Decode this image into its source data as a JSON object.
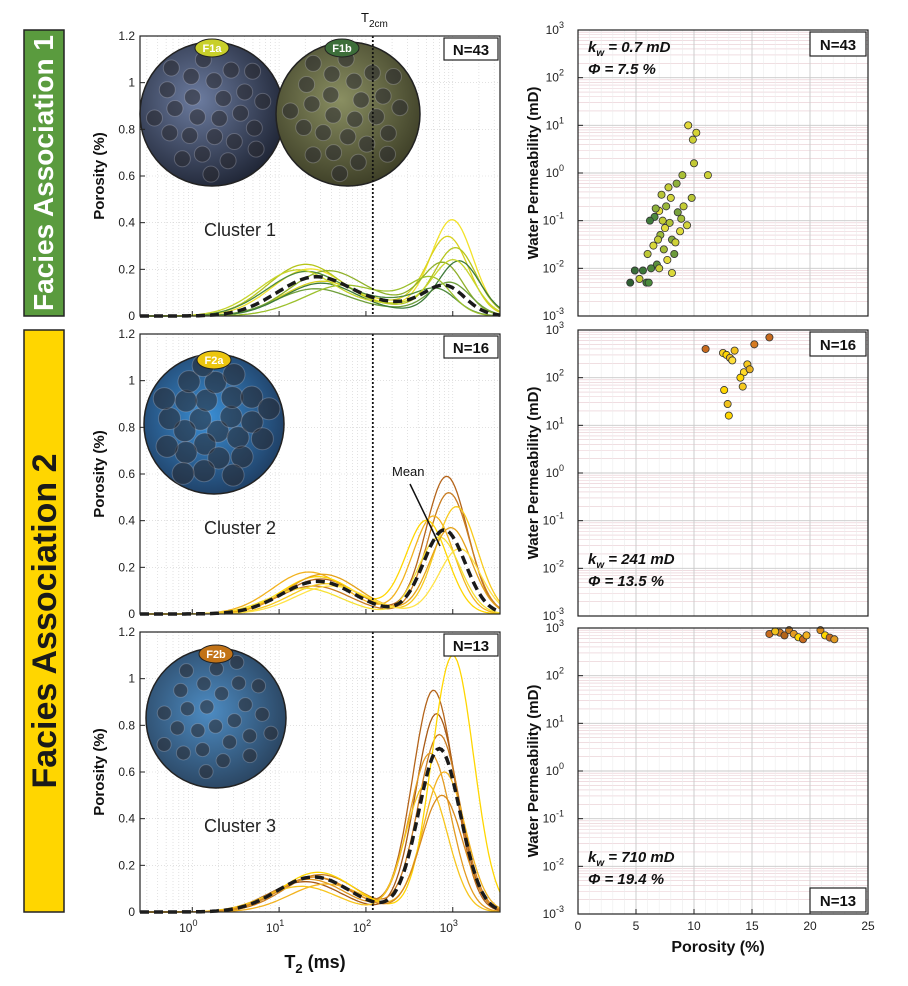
{
  "colors": {
    "fa1": "#5a9b3e",
    "fa2": "#ffd600",
    "mean": "#1a1a1a",
    "grid": "#d9d9d9",
    "gridPink": "#e8c9cf",
    "thin_sections": [
      "#3d4a6b",
      "#5c6a3a",
      "#2d6fb0",
      "#2a7cc0",
      "#3f86c6"
    ]
  },
  "facies": [
    {
      "label": "Facies Association 1",
      "color": "#5a9b3e",
      "text_color": "#ffffff"
    },
    {
      "label": "Facies Association 2",
      "color": "#ffd600",
      "text_color": "#1a1a1a"
    }
  ],
  "t2cm": {
    "label_main": "T",
    "label_sub": "2cm",
    "value": 120
  },
  "chart_data": [
    {
      "type": "line",
      "panel": "t2-cluster-1",
      "title": "Cluster 1",
      "n_label": "N=43",
      "xlabel_main": "T",
      "xlabel_sub": "2",
      "xlabel_unit": " (ms)",
      "ylabel": "Porosity (%)",
      "xscale": "log",
      "xlim": [
        0.25,
        3500
      ],
      "ylim": [
        0,
        1.2
      ],
      "yticks": [
        "0",
        "0.2",
        "0.4",
        "0.6",
        "0.8",
        "1",
        "1.2"
      ],
      "xticks": [
        {
          "base": "10",
          "exp": "0",
          "value": 1
        },
        {
          "base": "10",
          "exp": "1",
          "value": 10
        },
        {
          "base": "10",
          "exp": "2",
          "value": 100
        },
        {
          "base": "10",
          "exp": "3",
          "value": 1000
        }
      ],
      "inset_labels": [
        {
          "text": "F1a",
          "color": "#c8cf2a"
        },
        {
          "text": "F1b",
          "color": "#3d6e3a"
        }
      ],
      "peaks": {
        "p1_x": 22,
        "p1_y": 0.14,
        "mid_x": 90,
        "mid_y": 0.06,
        "p2_x": 850,
        "p2_y": 0.1
      },
      "series": [
        {
          "name": "mean",
          "color": "#1a1a1a",
          "p1x": 22,
          "p1h": 0.14,
          "p2x": 850,
          "p2h": 0.09,
          "base": 0.05,
          "dashed": true
        },
        {
          "name": "s1",
          "color": "#f2e22a",
          "p1x": 20,
          "p1h": 0.18,
          "p2x": 1000,
          "p2h": 0.38,
          "base": 0.04
        },
        {
          "name": "s2",
          "color": "#d9d21e",
          "p1x": 25,
          "p1h": 0.12,
          "p2x": 900,
          "p2h": 0.3,
          "base": 0.05
        },
        {
          "name": "s3",
          "color": "#b5c41b",
          "p1x": 18,
          "p1h": 0.2,
          "p2x": 1100,
          "p2h": 0.26,
          "base": 0.04
        },
        {
          "name": "s4",
          "color": "#8fb02a",
          "p1x": 30,
          "p1h": 0.16,
          "p2x": 800,
          "p2h": 0.18,
          "base": 0.06
        },
        {
          "name": "s5",
          "color": "#6e9f3a",
          "p1x": 22,
          "p1h": 0.1,
          "p2x": 950,
          "p2h": 0.12,
          "base": 0.03
        },
        {
          "name": "s6",
          "color": "#4f8a3c",
          "p1x": 16,
          "p1h": 0.15,
          "p2x": 700,
          "p2h": 0.06,
          "base": 0.07
        },
        {
          "name": "s7",
          "color": "#3e7a38",
          "p1x": 28,
          "p1h": 0.13,
          "p2x": 1200,
          "p2h": 0.22,
          "base": 0.02
        },
        {
          "name": "s8",
          "color": "#9cc02c",
          "p1x": 35,
          "p1h": 0.08,
          "p2x": 600,
          "p2h": 0.1,
          "base": 0.08
        },
        {
          "name": "s9",
          "color": "#c7d52b",
          "p1x": 14,
          "p1h": 0.17,
          "p2x": 1050,
          "p2h": 0.2,
          "base": 0.05
        }
      ]
    },
    {
      "type": "line",
      "panel": "t2-cluster-2",
      "title": "Cluster 2",
      "n_label": "N=16",
      "ylabel": "Porosity (%)",
      "xscale": "log",
      "xlim": [
        0.25,
        3500
      ],
      "ylim": [
        0,
        1.2
      ],
      "yticks": [
        "0",
        "0.2",
        "0.4",
        "0.6",
        "0.8",
        "1",
        "1.2"
      ],
      "inset_labels": [
        {
          "text": "F2a",
          "color": "#ecc60f"
        }
      ],
      "mean_label": "Mean",
      "series": [
        {
          "name": "mean",
          "color": "#1a1a1a",
          "p1x": 28,
          "p1h": 0.14,
          "p2x": 800,
          "p2h": 0.36,
          "base": 0.0,
          "dashed": true
        },
        {
          "name": "s1",
          "color": "#b4641a",
          "p1x": 30,
          "p1h": 0.15,
          "p2x": 850,
          "p2h": 0.59,
          "base": 0.0
        },
        {
          "name": "s2",
          "color": "#c97c20",
          "p1x": 25,
          "p1h": 0.12,
          "p2x": 900,
          "p2h": 0.52,
          "base": 0.0
        },
        {
          "name": "s3",
          "color": "#f2b21e",
          "p1x": 22,
          "p1h": 0.18,
          "p2x": 600,
          "p2h": 0.42,
          "base": 0.0
        },
        {
          "name": "s4",
          "color": "#f8cb1d",
          "p1x": 35,
          "p1h": 0.13,
          "p2x": 1100,
          "p2h": 0.46,
          "base": 0.0
        },
        {
          "name": "s5",
          "color": "#ffd600",
          "p1x": 28,
          "p1h": 0.16,
          "p2x": 500,
          "p2h": 0.4,
          "base": 0.0
        },
        {
          "name": "s6",
          "color": "#f5e033",
          "p1x": 20,
          "p1h": 0.11,
          "p2x": 700,
          "p2h": 0.33,
          "base": 0.0
        },
        {
          "name": "s7",
          "color": "#e5a31a",
          "p1x": 32,
          "p1h": 0.17,
          "p2x": 950,
          "p2h": 0.37,
          "base": 0.0
        },
        {
          "name": "s8",
          "color": "#ffe347",
          "p1x": 40,
          "p1h": 0.12,
          "p2x": 1200,
          "p2h": 0.28,
          "base": 0.0
        }
      ]
    },
    {
      "type": "line",
      "panel": "t2-cluster-3",
      "title": "Cluster 3",
      "n_label": "N=13",
      "ylabel": "Porosity (%)",
      "xscale": "log",
      "xlim": [
        0.25,
        3500
      ],
      "ylim": [
        0,
        1.2
      ],
      "yticks": [
        "0",
        "0.2",
        "0.4",
        "0.6",
        "0.8",
        "1",
        "1.2"
      ],
      "inset_labels": [
        {
          "text": "F2b",
          "color": "#c27317"
        }
      ],
      "series": [
        {
          "name": "mean",
          "color": "#1a1a1a",
          "p1x": 25,
          "p1h": 0.15,
          "p2x": 700,
          "p2h": 0.7,
          "base": 0.0,
          "dashed": true
        },
        {
          "name": "s1",
          "color": "#b4641a",
          "p1x": 25,
          "p1h": 0.15,
          "p2x": 600,
          "p2h": 0.95,
          "base": 0.0
        },
        {
          "name": "s2",
          "color": "#a85a15",
          "p1x": 20,
          "p1h": 0.13,
          "p2x": 650,
          "p2h": 0.85,
          "base": 0.0
        },
        {
          "name": "s3",
          "color": "#c97c20",
          "p1x": 30,
          "p1h": 0.16,
          "p2x": 700,
          "p2h": 0.76,
          "base": 0.0
        },
        {
          "name": "s4",
          "color": "#e39b22",
          "p1x": 22,
          "p1h": 0.14,
          "p2x": 550,
          "p2h": 0.68,
          "base": 0.0
        },
        {
          "name": "s5",
          "color": "#f2b21e",
          "p1x": 35,
          "p1h": 0.12,
          "p2x": 800,
          "p2h": 0.6,
          "base": 0.0
        },
        {
          "name": "s6",
          "color": "#ffd600",
          "p1x": 28,
          "p1h": 0.17,
          "p2x": 1000,
          "p2h": 1.1,
          "base": 0.0
        },
        {
          "name": "s7",
          "color": "#f7c51d",
          "p1x": 18,
          "p1h": 0.11,
          "p2x": 500,
          "p2h": 0.55,
          "base": 0.0
        },
        {
          "name": "s8",
          "color": "#d98a1c",
          "p1x": 26,
          "p1h": 0.15,
          "p2x": 750,
          "p2h": 0.5,
          "base": 0.0
        }
      ]
    },
    {
      "type": "scatter",
      "panel": "perm-cluster-1",
      "n_label": "N=43",
      "ylabel": "Water Permeability (mD)",
      "xlabel": "Porosity (%)",
      "yscale": "log",
      "xlim": [
        0,
        25
      ],
      "ylim": [
        0.001,
        1000
      ],
      "xticks": [
        "0",
        "5",
        "10",
        "15",
        "20",
        "25"
      ],
      "yticks": [
        {
          "base": "10",
          "exp": "-3",
          "value": 0.001
        },
        {
          "base": "10",
          "exp": "-2",
          "value": 0.01
        },
        {
          "base": "10",
          "exp": "-1",
          "value": 0.1
        },
        {
          "base": "10",
          "exp": "0",
          "value": 1
        },
        {
          "base": "10",
          "exp": "1",
          "value": 10
        },
        {
          "base": "10",
          "exp": "2",
          "value": 100
        },
        {
          "base": "10",
          "exp": "3",
          "value": 1000
        }
      ],
      "kw_sym": "k",
      "kw_sub": "w",
      "kw_text": " =  0.7 mD",
      "phi_text": "Φ = 7.5 %",
      "points": [
        {
          "x": 9.5,
          "y": 10,
          "c": "#e3d93a"
        },
        {
          "x": 10.2,
          "y": 7,
          "c": "#d6d335"
        },
        {
          "x": 9.9,
          "y": 5,
          "c": "#cdd034"
        },
        {
          "x": 10.0,
          "y": 1.6,
          "c": "#c2c934"
        },
        {
          "x": 11.2,
          "y": 0.9,
          "c": "#ccd136"
        },
        {
          "x": 9.0,
          "y": 0.9,
          "c": "#a9bf35"
        },
        {
          "x": 8.5,
          "y": 0.6,
          "c": "#8eb03a"
        },
        {
          "x": 7.8,
          "y": 0.5,
          "c": "#c7cd35"
        },
        {
          "x": 7.2,
          "y": 0.35,
          "c": "#b7c436"
        },
        {
          "x": 8.0,
          "y": 0.3,
          "c": "#d4d53b"
        },
        {
          "x": 7.6,
          "y": 0.2,
          "c": "#9bb83c"
        },
        {
          "x": 7.0,
          "y": 0.16,
          "c": "#e6df3e"
        },
        {
          "x": 8.6,
          "y": 0.15,
          "c": "#77a23d"
        },
        {
          "x": 6.6,
          "y": 0.12,
          "c": "#4d8a3e"
        },
        {
          "x": 7.3,
          "y": 0.1,
          "c": "#c3cb34"
        },
        {
          "x": 6.2,
          "y": 0.1,
          "c": "#3f7a3a"
        },
        {
          "x": 9.4,
          "y": 0.08,
          "c": "#d2d33a"
        },
        {
          "x": 7.9,
          "y": 0.09,
          "c": "#b0c235"
        },
        {
          "x": 8.8,
          "y": 0.06,
          "c": "#e0dc3a"
        },
        {
          "x": 7.1,
          "y": 0.05,
          "c": "#9cba39"
        },
        {
          "x": 6.9,
          "y": 0.04,
          "c": "#c5cc36"
        },
        {
          "x": 8.1,
          "y": 0.04,
          "c": "#86ab3a"
        },
        {
          "x": 6.5,
          "y": 0.03,
          "c": "#d8d739"
        },
        {
          "x": 7.4,
          "y": 0.025,
          "c": "#a5bd37"
        },
        {
          "x": 8.3,
          "y": 0.02,
          "c": "#6c9a3c"
        },
        {
          "x": 6.0,
          "y": 0.02,
          "c": "#bec835"
        },
        {
          "x": 7.7,
          "y": 0.015,
          "c": "#e4dd3c"
        },
        {
          "x": 6.8,
          "y": 0.012,
          "c": "#5a8f3c"
        },
        {
          "x": 6.3,
          "y": 0.01,
          "c": "#4c863b"
        },
        {
          "x": 7.0,
          "y": 0.01,
          "c": "#c9cf37"
        },
        {
          "x": 8.1,
          "y": 0.008,
          "c": "#dcd83a"
        },
        {
          "x": 5.6,
          "y": 0.009,
          "c": "#3d7538"
        },
        {
          "x": 4.9,
          "y": 0.009,
          "c": "#3a6d39"
        },
        {
          "x": 5.3,
          "y": 0.006,
          "c": "#c8cd35"
        },
        {
          "x": 5.9,
          "y": 0.005,
          "c": "#3f7a3a"
        },
        {
          "x": 4.5,
          "y": 0.005,
          "c": "#2f5f33"
        },
        {
          "x": 6.1,
          "y": 0.005,
          "c": "#4a8a3c"
        },
        {
          "x": 9.1,
          "y": 0.2,
          "c": "#c4cc35"
        },
        {
          "x": 8.9,
          "y": 0.11,
          "c": "#a3bd37"
        },
        {
          "x": 7.5,
          "y": 0.07,
          "c": "#e2dc3b"
        },
        {
          "x": 9.8,
          "y": 0.3,
          "c": "#b9c635"
        },
        {
          "x": 6.7,
          "y": 0.18,
          "c": "#8db13a"
        },
        {
          "x": 8.4,
          "y": 0.035,
          "c": "#d0d237"
        }
      ]
    },
    {
      "type": "scatter",
      "panel": "perm-cluster-2",
      "n_label": "N=16",
      "ylabel": "Water Permeability (mD)",
      "yscale": "log",
      "xlim": [
        0,
        25
      ],
      "ylim": [
        0.001,
        1000
      ],
      "kw_sym": "k",
      "kw_sub": "w",
      "kw_text": " =  241 mD",
      "phi_text": "Φ = 13.5 %",
      "points": [
        {
          "x": 16.5,
          "y": 700,
          "c": "#c86a1d"
        },
        {
          "x": 15.2,
          "y": 500,
          "c": "#d67a22"
        },
        {
          "x": 11.0,
          "y": 400,
          "c": "#c76a1d"
        },
        {
          "x": 13.5,
          "y": 370,
          "c": "#f2c21c"
        },
        {
          "x": 12.5,
          "y": 330,
          "c": "#f8d21f"
        },
        {
          "x": 12.8,
          "y": 300,
          "c": "#ffd600"
        },
        {
          "x": 13.1,
          "y": 260,
          "c": "#f0c01e"
        },
        {
          "x": 13.3,
          "y": 230,
          "c": "#ffe03a"
        },
        {
          "x": 14.6,
          "y": 190,
          "c": "#f6c91e"
        },
        {
          "x": 14.3,
          "y": 130,
          "c": "#ffd92a"
        },
        {
          "x": 14.0,
          "y": 100,
          "c": "#ffd600"
        },
        {
          "x": 14.2,
          "y": 65,
          "c": "#f5c81d"
        },
        {
          "x": 12.6,
          "y": 55,
          "c": "#ffd600"
        },
        {
          "x": 12.9,
          "y": 28,
          "c": "#f0c21c"
        },
        {
          "x": 13.0,
          "y": 16,
          "c": "#ffd600"
        },
        {
          "x": 14.8,
          "y": 150,
          "c": "#e9b21b"
        }
      ]
    },
    {
      "type": "scatter",
      "panel": "perm-cluster-3",
      "n_label": "N=13",
      "ylabel": "Water Permeability (mD)",
      "xlabel": "Porosity (%)",
      "yscale": "log",
      "xlim": [
        0,
        25
      ],
      "ylim": [
        0.001,
        1000
      ],
      "xticks": [
        "0",
        "5",
        "10",
        "15",
        "20",
        "25"
      ],
      "kw_sym": "k",
      "kw_sub": "w",
      "kw_text": " =  710 mD",
      "phi_text": "Φ = 19.4 %",
      "points": [
        {
          "x": 16.5,
          "y": 750,
          "c": "#c86a1d"
        },
        {
          "x": 17.4,
          "y": 800,
          "c": "#d67a22"
        },
        {
          "x": 17.8,
          "y": 700,
          "c": "#b4641a"
        },
        {
          "x": 18.2,
          "y": 900,
          "c": "#c97c20"
        },
        {
          "x": 18.6,
          "y": 750,
          "c": "#e39b22"
        },
        {
          "x": 19.0,
          "y": 640,
          "c": "#ffd600"
        },
        {
          "x": 19.4,
          "y": 580,
          "c": "#c86a1d"
        },
        {
          "x": 19.7,
          "y": 700,
          "c": "#f2b21e"
        },
        {
          "x": 20.9,
          "y": 900,
          "c": "#d98a1c"
        },
        {
          "x": 21.3,
          "y": 700,
          "c": "#ffd600"
        },
        {
          "x": 21.7,
          "y": 630,
          "c": "#c76a1d"
        },
        {
          "x": 22.1,
          "y": 580,
          "c": "#e39b22"
        },
        {
          "x": 17.0,
          "y": 850,
          "c": "#f2c21c"
        }
      ]
    }
  ]
}
